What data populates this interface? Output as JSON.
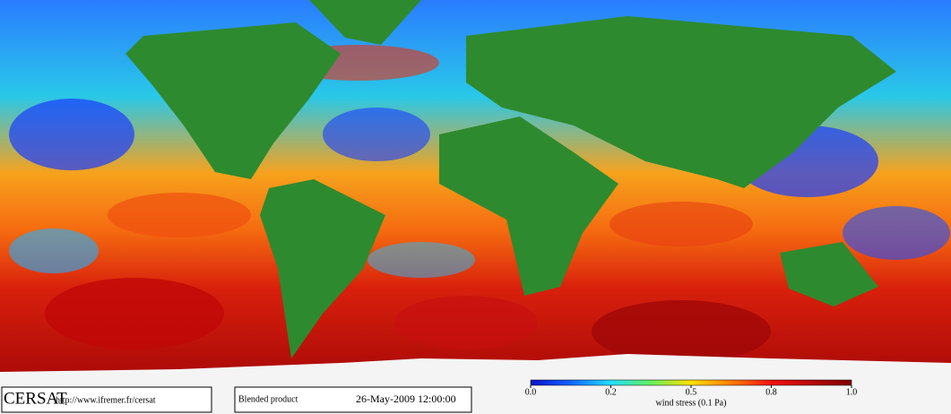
{
  "footer": {
    "brand": "CERSAT",
    "url": "http://www.ifremer.fr/cersat",
    "product": "Blended product",
    "datetime": "26-May-2009 12:00:00"
  },
  "colorbar": {
    "label": "wind stress (0.1 Pa)",
    "lim": [
      0,
      1
    ],
    "ticks": [
      {
        "value": 0,
        "label": "0.0"
      },
      0.2,
      0.5,
      0.8,
      {
        "value": 1,
        "label": "1.0"
      }
    ]
  }
}
